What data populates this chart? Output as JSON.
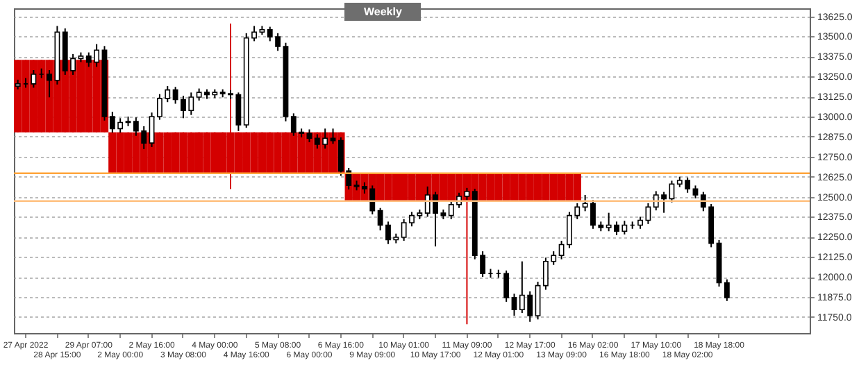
{
  "chart_data": {
    "type": "candlestick",
    "annotations": [
      "Weekly"
    ],
    "categories": [
      null,
      "27 Apr 2022",
      null,
      null,
      null,
      "28 Apr 15:00",
      null,
      null,
      null,
      "29 Apr 07:00",
      null,
      null,
      null,
      "2 May 00:00",
      null,
      null,
      null,
      "2 May 16:00",
      null,
      null,
      null,
      "3 May 08:00",
      null,
      null,
      null,
      "4 May 00:00",
      null,
      null,
      null,
      "4 May 16:00",
      null,
      null,
      null,
      "5 May 08:00",
      null,
      null,
      null,
      "6 May 00:00",
      null,
      null,
      null,
      "6 May 16:00",
      null,
      null,
      null,
      "9 May 09:00",
      null,
      null,
      null,
      "10 May 01:00",
      null,
      null,
      null,
      "10 May 17:00",
      null,
      null,
      null,
      "11 May 09:00",
      null,
      null,
      null,
      "12 May 01:00",
      null,
      null,
      null,
      "12 May 17:00",
      null,
      null,
      null,
      "13 May 09:00",
      null,
      null,
      null,
      "16 May 02:00",
      null,
      null,
      null,
      "16 May 18:00",
      null,
      null,
      null,
      "17 May 10:00",
      null,
      null,
      null,
      "18 May 02:00",
      null,
      null,
      null,
      "18 May 18:00",
      null,
      null,
      null,
      null,
      null,
      null,
      null,
      null,
      null,
      null,
      null
    ],
    "series": [
      {
        "color": "#d40000",
        "ohlc": [
          [
            13354,
            13354,
            12902,
            12902
          ],
          [
            13354,
            13354,
            12902,
            12902
          ],
          [
            13354,
            13354,
            12902,
            12902
          ],
          [
            13354,
            13354,
            12902,
            12902
          ],
          [
            13354,
            13354,
            12902,
            12902
          ],
          [
            13354,
            13354,
            12902,
            12902
          ],
          [
            13354,
            13354,
            12902,
            12902
          ],
          [
            13354,
            13354,
            12902,
            12902
          ],
          [
            13354,
            13354,
            12902,
            12902
          ],
          [
            13354,
            13354,
            12902,
            12902
          ],
          [
            13354,
            13354,
            12902,
            12902
          ],
          [
            13354,
            13354,
            12902,
            12902
          ],
          [
            12902,
            12902,
            12646,
            12646
          ],
          [
            12902,
            12902,
            12646,
            12646
          ],
          [
            12902,
            12902,
            12646,
            12646
          ],
          [
            12902,
            12902,
            12646,
            12646
          ],
          [
            12902,
            12902,
            12646,
            12646
          ],
          [
            12902,
            12902,
            12646,
            12646
          ],
          [
            12902,
            12902,
            12646,
            12646
          ],
          [
            12902,
            12902,
            12646,
            12646
          ],
          [
            12902,
            12902,
            12646,
            12646
          ],
          [
            12902,
            12902,
            12646,
            12646
          ],
          [
            12902,
            12902,
            12646,
            12646
          ],
          [
            12902,
            12902,
            12646,
            12646
          ],
          [
            12902,
            12902,
            12646,
            12646
          ],
          [
            12902,
            12902,
            12646,
            12646
          ],
          [
            12902,
            12902,
            12646,
            12646
          ],
          [
            12902,
            13580,
            12548,
            12646
          ],
          [
            12902,
            12902,
            12646,
            12646
          ],
          [
            12902,
            12902,
            12646,
            12646
          ],
          [
            12902,
            12902,
            12646,
            12646
          ],
          [
            12902,
            12902,
            12646,
            12646
          ],
          [
            12902,
            12902,
            12646,
            12646
          ],
          [
            12902,
            12902,
            12646,
            12646
          ],
          [
            12902,
            12902,
            12646,
            12646
          ],
          [
            12902,
            12902,
            12646,
            12646
          ],
          [
            12902,
            12902,
            12646,
            12646
          ],
          [
            12902,
            12902,
            12646,
            12646
          ],
          [
            12902,
            12902,
            12646,
            12646
          ],
          [
            12902,
            12902,
            12646,
            12646
          ],
          [
            12902,
            12902,
            12646,
            12646
          ],
          [
            12902,
            12902,
            12646,
            12646
          ],
          [
            12646,
            12646,
            12473,
            12473
          ],
          [
            12646,
            12646,
            12473,
            12473
          ],
          [
            12646,
            12646,
            12473,
            12473
          ],
          [
            12646,
            12646,
            12473,
            12473
          ],
          [
            12646,
            12646,
            12473,
            12473
          ],
          [
            12646,
            12646,
            12473,
            12473
          ],
          [
            12646,
            12646,
            12473,
            12473
          ],
          [
            12646,
            12646,
            12473,
            12473
          ],
          [
            12646,
            12646,
            12473,
            12473
          ],
          [
            12646,
            12646,
            12473,
            12473
          ],
          [
            12646,
            12646,
            12473,
            12473
          ],
          [
            12646,
            12646,
            12473,
            12473
          ],
          [
            12646,
            12646,
            12473,
            12473
          ],
          [
            12646,
            12646,
            12473,
            12473
          ],
          [
            12646,
            12646,
            12473,
            12473
          ],
          [
            12646,
            12646,
            11705,
            12473
          ],
          [
            12646,
            12646,
            12473,
            12473
          ],
          [
            12646,
            12646,
            12473,
            12473
          ],
          [
            12646,
            12646,
            12473,
            12473
          ],
          [
            12646,
            12646,
            12473,
            12473
          ],
          [
            12646,
            12646,
            12473,
            12473
          ],
          [
            12646,
            12646,
            12473,
            12473
          ],
          [
            12646,
            12646,
            12473,
            12473
          ],
          [
            12646,
            12646,
            12473,
            12473
          ],
          [
            12646,
            12646,
            12473,
            12473
          ],
          [
            12646,
            12646,
            12473,
            12473
          ],
          [
            12646,
            12646,
            12473,
            12473
          ],
          [
            12646,
            12646,
            12473,
            12473
          ],
          [
            12646,
            12646,
            12473,
            12473
          ],
          [
            12646,
            12646,
            12473,
            12473
          ],
          null,
          null,
          null,
          null,
          null,
          null,
          null,
          null,
          null,
          null,
          null,
          null,
          null,
          null,
          null,
          null,
          null,
          null,
          null,
          null,
          null,
          null,
          null,
          null,
          null,
          null,
          null,
          null,
          null
        ]
      },
      {
        "color": "#000000",
        "ohlc": [
          [
            13190,
            13230,
            13170,
            13204
          ],
          [
            13204,
            13240,
            13180,
            13204
          ],
          [
            13204,
            13290,
            13180,
            13264
          ],
          [
            13264,
            13300,
            13240,
            13264
          ],
          [
            13264,
            13290,
            13120,
            13226
          ],
          [
            13226,
            13565,
            13200,
            13527
          ],
          [
            13527,
            13550,
            13260,
            13286
          ],
          [
            13286,
            13390,
            13260,
            13362
          ],
          [
            13362,
            13400,
            13340,
            13377
          ],
          [
            13377,
            13400,
            13310,
            13339
          ],
          [
            13339,
            13452,
            13310,
            13414
          ],
          [
            13414,
            13440,
            12975,
            13000
          ],
          [
            13000,
            13030,
            12900,
            12925
          ],
          [
            12925,
            12990,
            12900,
            12963
          ],
          [
            12963,
            13000,
            12940,
            12970
          ],
          [
            12970,
            12995,
            12880,
            12910
          ],
          [
            12910,
            12940,
            12797,
            12835
          ],
          [
            12835,
            13025,
            12810,
            13000
          ],
          [
            13000,
            13140,
            12980,
            13113
          ],
          [
            13113,
            13190,
            13090,
            13166
          ],
          [
            13166,
            13185,
            13080,
            13106
          ],
          [
            13106,
            13130,
            12990,
            13038
          ],
          [
            13038,
            13150,
            13010,
            13121
          ],
          [
            13121,
            13175,
            13100,
            13151
          ],
          [
            13151,
            13170,
            13110,
            13136
          ],
          [
            13136,
            13170,
            13115,
            13151
          ],
          [
            13151,
            13170,
            13120,
            13143
          ],
          [
            13143,
            13165,
            13110,
            13136
          ],
          [
            13136,
            13150,
            12910,
            12948
          ],
          [
            12948,
            13520,
            12930,
            13490
          ],
          [
            13490,
            13565,
            13470,
            13527
          ],
          [
            13527,
            13565,
            13510,
            13542
          ],
          [
            13542,
            13560,
            13470,
            13497
          ],
          [
            13497,
            13520,
            13410,
            13437
          ],
          [
            13437,
            13460,
            12970,
            13000
          ],
          [
            13000,
            13020,
            12880,
            12902
          ],
          [
            12902,
            12925,
            12870,
            12895
          ],
          [
            12895,
            12920,
            12840,
            12865
          ],
          [
            12865,
            12890,
            12800,
            12827
          ],
          [
            12827,
            12925,
            12800,
            12865
          ],
          [
            12865,
            12925,
            12830,
            12850
          ],
          [
            12850,
            12870,
            12630,
            12661
          ],
          [
            12661,
            12680,
            12545,
            12571
          ],
          [
            12571,
            12600,
            12540,
            12564
          ],
          [
            12564,
            12590,
            12520,
            12549
          ],
          [
            12549,
            12570,
            12390,
            12413
          ],
          [
            12413,
            12430,
            12290,
            12323
          ],
          [
            12323,
            12345,
            12205,
            12232
          ],
          [
            12232,
            12270,
            12210,
            12247
          ],
          [
            12247,
            12360,
            12225,
            12338
          ],
          [
            12338,
            12405,
            12315,
            12383
          ],
          [
            12383,
            12420,
            12360,
            12398
          ],
          [
            12398,
            12564,
            12375,
            12511
          ],
          [
            12511,
            12530,
            12190,
            12398
          ],
          [
            12398,
            12420,
            12360,
            12383
          ],
          [
            12383,
            12475,
            12360,
            12451
          ],
          [
            12451,
            12525,
            12430,
            12503
          ],
          [
            12503,
            12555,
            12480,
            12533
          ],
          [
            12533,
            12550,
            12110,
            12134
          ],
          [
            12134,
            12160,
            12000,
            12021
          ],
          [
            12021,
            12050,
            11995,
            12021
          ],
          [
            12021,
            12045,
            11995,
            12021
          ],
          [
            12021,
            12040,
            11845,
            11871
          ],
          [
            11871,
            11895,
            11758,
            11796
          ],
          [
            11796,
            12097,
            11775,
            11886
          ],
          [
            11886,
            11910,
            11720,
            11758
          ],
          [
            11758,
            11970,
            11735,
            11946
          ],
          [
            11946,
            12120,
            11920,
            12097
          ],
          [
            12097,
            12160,
            12075,
            12134
          ],
          [
            12134,
            12225,
            12110,
            12202
          ],
          [
            12202,
            12405,
            12180,
            12383
          ],
          [
            12383,
            12460,
            12360,
            12436
          ],
          [
            12436,
            12511,
            12410,
            12458
          ],
          [
            12458,
            12480,
            12300,
            12323
          ],
          [
            12323,
            12345,
            12285,
            12308
          ],
          [
            12308,
            12400,
            12285,
            12323
          ],
          [
            12323,
            12345,
            12260,
            12285
          ],
          [
            12285,
            12350,
            12265,
            12323
          ],
          [
            12323,
            12345,
            12300,
            12323
          ],
          [
            12323,
            12375,
            12300,
            12353
          ],
          [
            12353,
            12460,
            12330,
            12436
          ],
          [
            12436,
            12535,
            12415,
            12511
          ],
          [
            12511,
            12530,
            12400,
            12488
          ],
          [
            12488,
            12600,
            12465,
            12579
          ],
          [
            12579,
            12625,
            12560,
            12602
          ],
          [
            12602,
            12620,
            12525,
            12549
          ],
          [
            12549,
            12570,
            12490,
            12511
          ],
          [
            12511,
            12530,
            12410,
            12436
          ],
          [
            12436,
            12455,
            12185,
            12210
          ],
          [
            12210,
            12230,
            11940,
            11964
          ],
          [
            11964,
            11985,
            11850,
            11871
          ],
          null,
          null,
          null,
          null,
          null,
          null,
          null,
          null,
          null,
          null
        ]
      }
    ],
    "ref_lines": [
      {
        "axis": "y",
        "value": 12646,
        "color": "#ffa53c"
      },
      {
        "axis": "y",
        "value": 12473,
        "color": "#ffc080"
      }
    ],
    "ylim": [
      11650,
      13675
    ],
    "yticks": [
      {
        "value": 11750,
        "label": "11750.0"
      },
      {
        "value": 11875,
        "label": "11875.0"
      },
      {
        "value": 12000,
        "label": "12000.0"
      },
      {
        "value": 12125,
        "label": "12125.0"
      },
      {
        "value": 12250,
        "label": "12250.0"
      },
      {
        "value": 12375,
        "label": "12375.0"
      },
      {
        "value": 12500,
        "label": "12500.0"
      },
      {
        "value": 12625,
        "label": "12625.0"
      },
      {
        "value": 12750,
        "label": "12750.0"
      },
      {
        "value": 12875,
        "label": "12875.0"
      },
      {
        "value": 13000,
        "label": "13000.0"
      },
      {
        "value": 13125,
        "label": "13125.0"
      },
      {
        "value": 13250,
        "label": "13250.0"
      },
      {
        "value": 13375,
        "label": "13375.0"
      },
      {
        "value": 13500,
        "label": "13500.0"
      },
      {
        "value": 13625,
        "label": "13625.0"
      }
    ],
    "grid": "y"
  }
}
